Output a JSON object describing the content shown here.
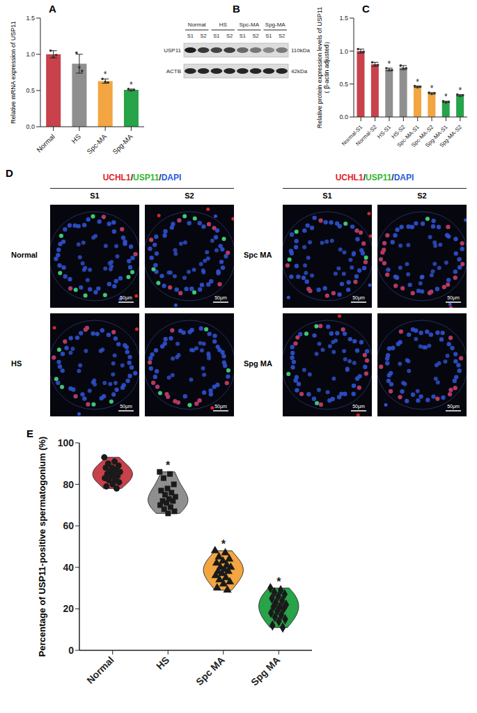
{
  "chart_data": [
    {
      "panel": "A",
      "type": "bar",
      "y_label": "Relative mRNA expression of USP11",
      "categories": [
        "Normal",
        "HS",
        "Spc-MA",
        "Spg-MA"
      ],
      "values": [
        1.0,
        0.87,
        0.63,
        0.51
      ],
      "errors": [
        0.05,
        0.13,
        0.03,
        0.01
      ],
      "points": [
        [
          1.05,
          0.96,
          0.99
        ],
        [
          1.02,
          0.82,
          0.77
        ],
        [
          0.66,
          0.62,
          0.61
        ],
        [
          0.52,
          0.5,
          0.51
        ]
      ],
      "colors": [
        "#c8414b",
        "#8f8f8f",
        "#f2a541",
        "#27a34a"
      ],
      "ylim": [
        0,
        1.5
      ],
      "yticks": [
        {
          "value": 0,
          "label": "0.0"
        },
        0.5,
        {
          "value": 1,
          "label": "1.0"
        },
        1.5
      ],
      "annotation": "*",
      "annotated": [
        false,
        false,
        true,
        true
      ]
    },
    {
      "panel": "C",
      "type": "bar",
      "y_label": [
        "Relative protein expression levels of USP11",
        "（ β-actin adjusted）"
      ],
      "categories": [
        "Normal-S1",
        "Normal-S2",
        "HS-S1",
        "HS-S2",
        "Spc-MA-S1",
        "Spc-MA-S2",
        "Spg-MA-S1",
        "Spg-MA-S2"
      ],
      "values": [
        1.0,
        0.8,
        0.72,
        0.75,
        0.46,
        0.36,
        0.23,
        0.33
      ],
      "errors": [
        0.03,
        0.03,
        0.02,
        0.03,
        0.01,
        0.01,
        0.01,
        0.01
      ],
      "points": [
        [
          1.03,
          0.98,
          0.99
        ],
        [
          0.83,
          0.78,
          0.79
        ],
        [
          0.74,
          0.71,
          0.71
        ],
        [
          0.78,
          0.73,
          0.74
        ],
        [
          0.47,
          0.45,
          0.46
        ],
        [
          0.37,
          0.35,
          0.36
        ],
        [
          0.24,
          0.22,
          0.23
        ],
        [
          0.34,
          0.32,
          0.33
        ]
      ],
      "colors": [
        "#c8414b",
        "#c8414b",
        "#8f8f8f",
        "#8f8f8f",
        "#f2a541",
        "#f2a541",
        "#27a34a",
        "#27a34a"
      ],
      "ylim": [
        0,
        1.5
      ],
      "yticks": [
        {
          "value": 0,
          "label": "0.0"
        },
        0.5,
        {
          "value": 1,
          "label": "1.0"
        },
        1.5
      ],
      "annotation": "*",
      "annotated": [
        false,
        false,
        true,
        false,
        true,
        true,
        true,
        true
      ]
    },
    {
      "panel": "E",
      "type": "violin",
      "y_label": "Percentage of USP11-positive spermatogonium (%)",
      "categories": [
        "Normal",
        "HS",
        "Spc MA",
        "Spg MA"
      ],
      "points": [
        [
          93,
          91,
          90,
          89,
          88,
          88,
          87,
          86,
          86,
          85,
          85,
          84,
          84,
          83,
          82,
          82,
          81,
          80,
          79,
          78
        ],
        [
          86,
          85,
          83,
          80,
          78,
          77,
          76,
          75,
          74,
          73,
          72,
          72,
          71,
          70,
          69,
          68,
          67,
          66
        ],
        [
          48,
          47,
          45,
          44,
          43,
          42,
          41,
          40,
          40,
          39,
          38,
          38,
          37,
          36,
          35,
          34,
          33,
          32,
          30,
          29
        ],
        [
          30,
          29,
          28,
          27,
          26,
          25,
          24,
          23,
          22,
          21,
          21,
          20,
          19,
          18,
          17,
          16,
          15,
          14,
          12,
          11
        ]
      ],
      "colors": [
        "#c8414b",
        "#8f8f8f",
        "#f2a541",
        "#27a34a"
      ],
      "markers": [
        "circle",
        "square",
        "triangle",
        "diamond"
      ],
      "ylim": [
        0,
        100
      ],
      "yticks": [
        0,
        20,
        40,
        60,
        80,
        100
      ],
      "annotation": "*",
      "annotated": [
        false,
        true,
        true,
        true
      ]
    }
  ],
  "blot": {
    "panel": "B",
    "groups": [
      "Normal",
      "HS",
      "Spc-MA",
      "Spg-MA"
    ],
    "lanes": [
      "S1",
      "S2"
    ],
    "bands": [
      {
        "name": "USP11",
        "size": "110kDa"
      },
      {
        "name": "ACTB",
        "size": "42kDa"
      }
    ]
  },
  "images": {
    "panel": "D",
    "stain_label": "UCHL1/USP11/DAPI",
    "stain_colors": [
      "#e8202a",
      "#2eb82e",
      "#2a5ae0"
    ],
    "samples": [
      "S1",
      "S2"
    ],
    "groups": [
      [
        "Normal",
        "HS"
      ],
      [
        "Spc MA",
        "Spg MA"
      ]
    ],
    "scale_bar": "50μm"
  }
}
